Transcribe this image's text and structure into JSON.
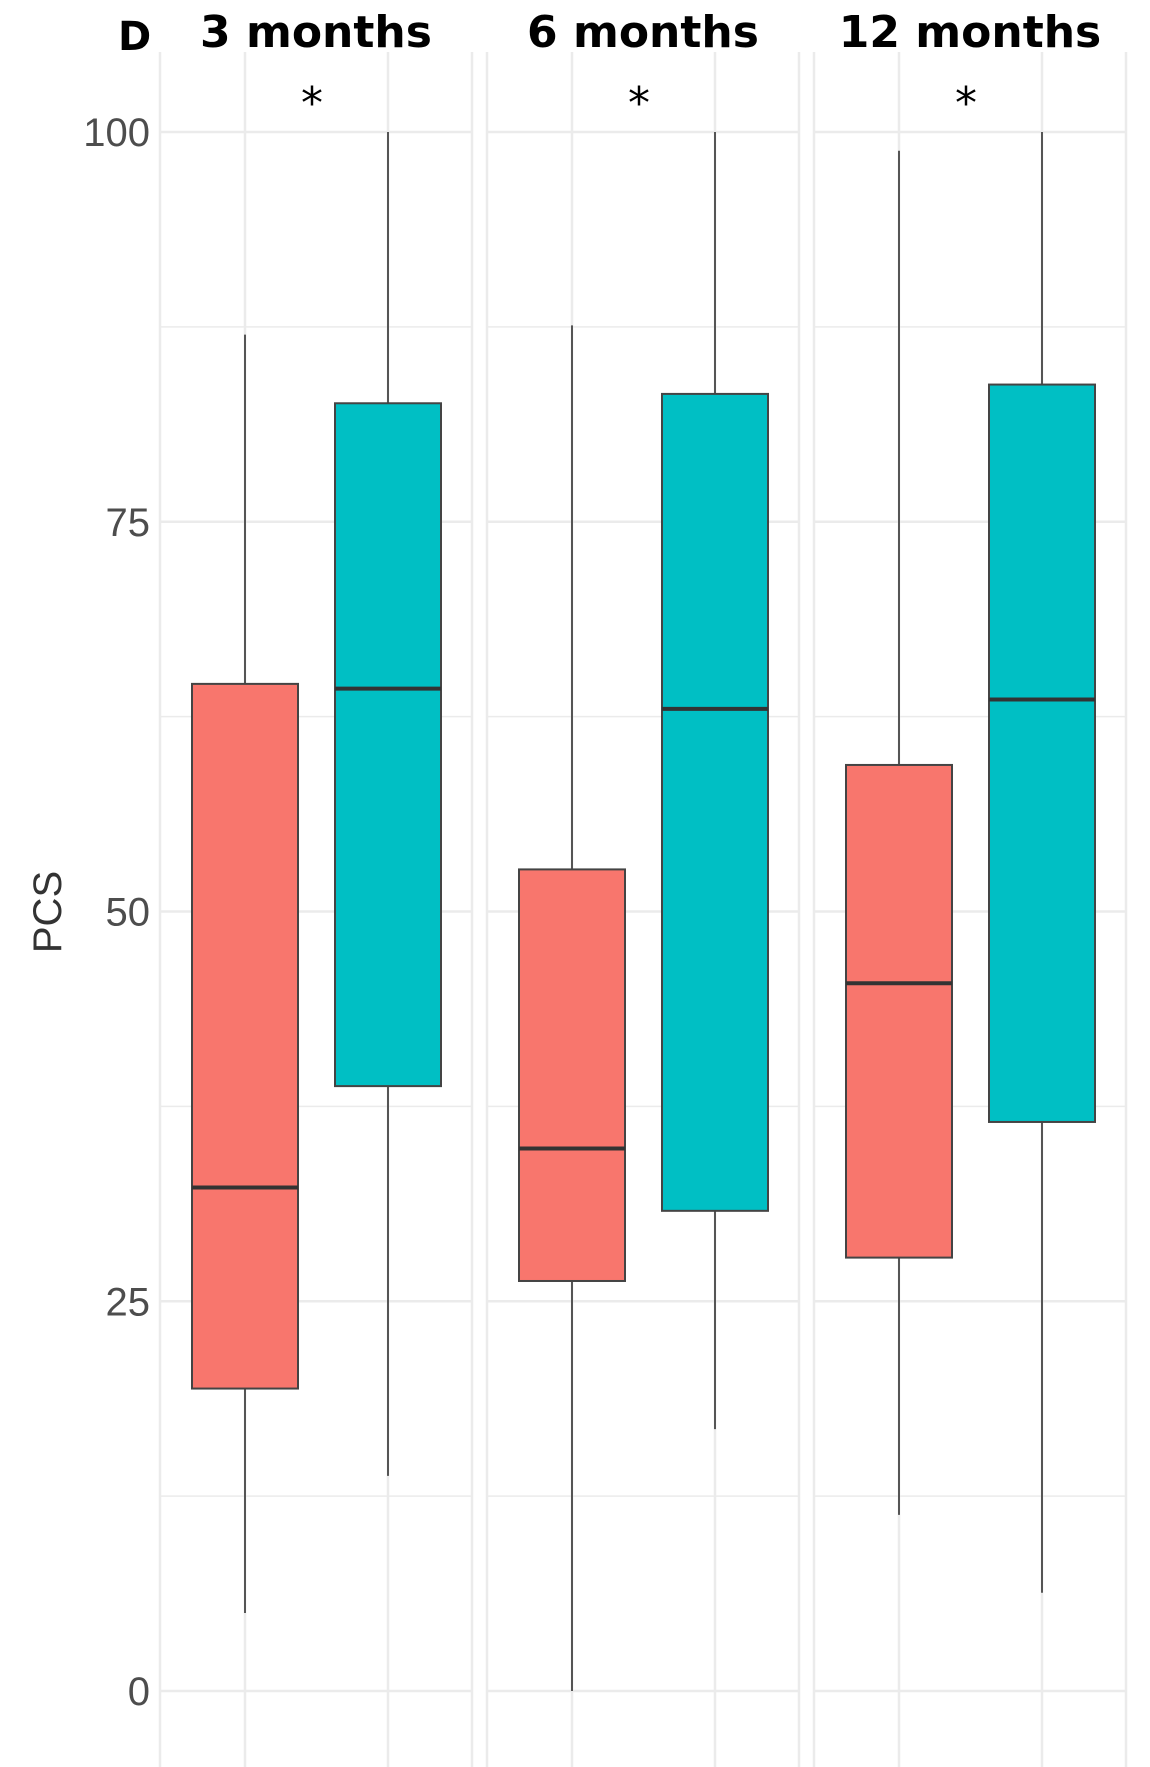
{
  "chart_data": {
    "type": "boxplot",
    "panel_label": "D",
    "ylabel": "PCS",
    "xlabel": "",
    "ylim": [
      -4.7,
      100
    ],
    "yticks": [
      "0",
      "25",
      "50",
      "75",
      "100"
    ],
    "grid": true,
    "colors": {
      "group_1": "#f8766d",
      "group_2": "#00bfc4",
      "median_line": "#333333",
      "whisker": "#555555",
      "grid": "#ebebeb"
    },
    "facets": [
      {
        "label": "3 months",
        "significance": "*",
        "boxes": [
          {
            "group": "group_1",
            "min": 5,
            "q1": 19.4,
            "median": 32.3,
            "q3": 64.6,
            "max": 87.0
          },
          {
            "group": "group_2",
            "min": 13.8,
            "q1": 38.8,
            "median": 64.3,
            "q3": 82.6,
            "max": 100
          }
        ]
      },
      {
        "label": "6 months",
        "significance": "*",
        "boxes": [
          {
            "group": "group_1",
            "min": 0,
            "q1": 26.3,
            "median": 34.8,
            "q3": 52.7,
            "max": 87.6
          },
          {
            "group": "group_2",
            "min": 16.8,
            "q1": 30.8,
            "median": 63.0,
            "q3": 83.2,
            "max": 100
          }
        ]
      },
      {
        "label": "12 months",
        "significance": "*",
        "boxes": [
          {
            "group": "group_1",
            "min": 11.3,
            "q1": 27.8,
            "median": 45.4,
            "q3": 59.4,
            "max": 98.8
          },
          {
            "group": "group_2",
            "min": 6.3,
            "q1": 36.5,
            "median": 63.6,
            "q3": 83.8,
            "max": 100
          }
        ]
      }
    ]
  }
}
